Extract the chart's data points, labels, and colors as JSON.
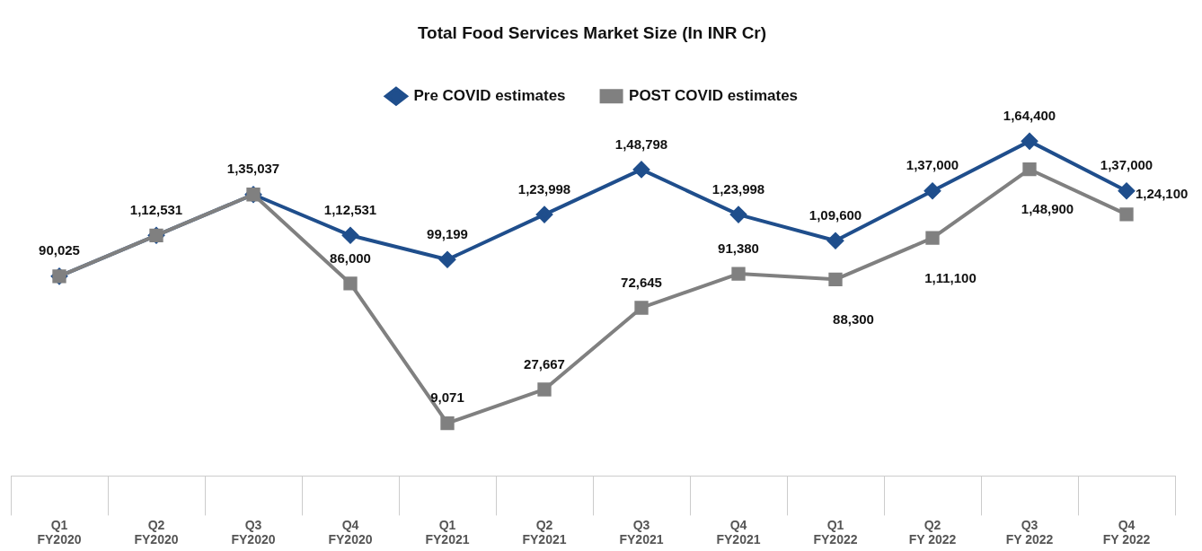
{
  "chart_data": {
    "type": "line",
    "title": "Total Food Services Market Size (In INR Cr)",
    "legend": "top",
    "grid": false,
    "categories": [
      "Q1 FY2020",
      "Q2 FY2020",
      "Q3 FY2020",
      "Q4 FY2020",
      "Q1 FY2021",
      "Q2 FY2021",
      "Q3 FY2021",
      "Q4 FY2021",
      "Q1 FY2022",
      "Q2 FY 2022",
      "Q3 FY 2022",
      "Q4 FY 2022"
    ],
    "series": [
      {
        "name": "Pre COVID estimates",
        "color": "#1f4e8c",
        "marker": "diamond",
        "values": [
          90025,
          112531,
          135037,
          112531,
          99199,
          123998,
          148798,
          123998,
          109600,
          137000,
          164400,
          137000
        ],
        "value_labels": [
          "90,025",
          "1,12,531",
          "1,35,037",
          "1,12,531",
          "99,199",
          "1,23,998",
          "1,48,798",
          "1,23,998",
          "1,09,600",
          "1,37,000",
          "1,64,400",
          "1,37,000"
        ]
      },
      {
        "name": "POST COVID estimates",
        "color": "#808080",
        "marker": "square",
        "values": [
          90025,
          112531,
          135037,
          86000,
          9071,
          27667,
          72645,
          91380,
          88300,
          111100,
          148900,
          124100
        ],
        "value_labels": [
          null,
          null,
          null,
          "86,000",
          "9,071",
          "27,667",
          "72,645",
          "91,380",
          "88,300",
          "1,11,100",
          "1,48,900",
          "1,24,100"
        ]
      }
    ]
  }
}
